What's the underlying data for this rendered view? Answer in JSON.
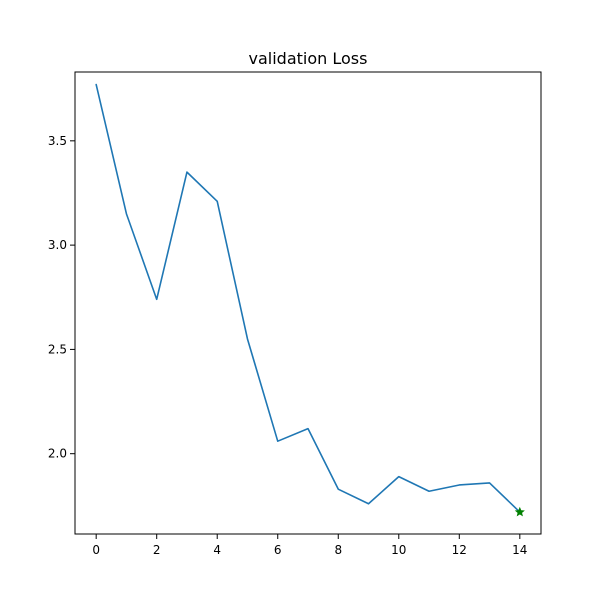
{
  "chart_data": {
    "type": "line",
    "title": "validation Loss",
    "xlabel": "",
    "ylabel": "",
    "xlim": [
      -0.7,
      14.7
    ],
    "ylim": [
      1.615,
      3.83
    ],
    "grid": false,
    "xticks": [
      0,
      2,
      4,
      6,
      8,
      10,
      12,
      14
    ],
    "yticks": [
      2.0,
      2.5,
      3.0,
      3.5
    ],
    "ytick_labels": [
      "2.0",
      "2.5",
      "3.0",
      "3.5"
    ],
    "series": [
      {
        "x": [
          0,
          1,
          2,
          3,
          4,
          5,
          6,
          7,
          8,
          9,
          10,
          11,
          12,
          13,
          14
        ],
        "values": [
          3.77,
          3.15,
          2.74,
          3.35,
          3.21,
          2.55,
          2.06,
          2.12,
          1.83,
          1.76,
          1.89,
          1.82,
          1.85,
          1.86,
          1.72
        ],
        "color": "#1f77b4"
      }
    ],
    "marker": {
      "x": 14,
      "y": 1.72,
      "shape": "star",
      "color": "#008000"
    }
  }
}
